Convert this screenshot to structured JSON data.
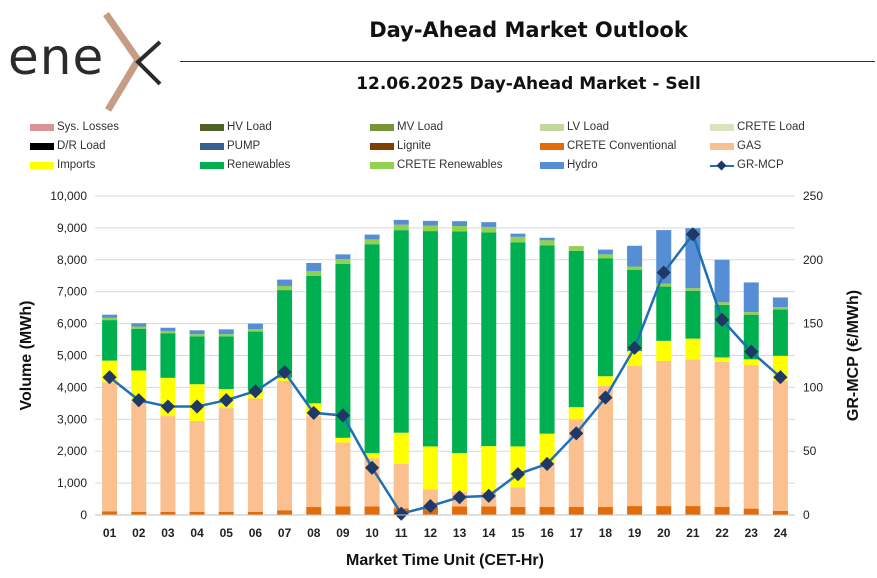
{
  "brand": {
    "logo_text": "ene",
    "logo_color": "#2b2b2b",
    "accent_color": "#c69c85"
  },
  "header": {
    "title": "Day-Ahead Market Outlook",
    "subtitle": "12.06.2025  Day-Ahead Market - Sell"
  },
  "legend": [
    {
      "label": "Sys. Losses",
      "color": "#d99594",
      "kind": "bar"
    },
    {
      "label": "HV Load",
      "color": "#4f6228",
      "kind": "bar"
    },
    {
      "label": "MV Load",
      "color": "#77933c",
      "kind": "bar"
    },
    {
      "label": "LV Load",
      "color": "#c3d69b",
      "kind": "bar"
    },
    {
      "label": "CRETE Load",
      "color": "#d7e4bd",
      "kind": "bar"
    },
    {
      "label": "D/R Load",
      "color": "#000000",
      "kind": "bar"
    },
    {
      "label": "PUMP",
      "color": "#376092",
      "kind": "bar"
    },
    {
      "label": "Lignite",
      "color": "#7f3f00",
      "kind": "bar"
    },
    {
      "label": "CRETE Conventional",
      "color": "#e36c09",
      "kind": "bar"
    },
    {
      "label": "GAS",
      "color": "#fac090",
      "kind": "bar"
    },
    {
      "label": "Imports",
      "color": "#ffff00",
      "kind": "bar"
    },
    {
      "label": "Renewables",
      "color": "#00b050",
      "kind": "bar"
    },
    {
      "label": "CRETE Renewables",
      "color": "#92d050",
      "kind": "bar"
    },
    {
      "label": "Hydro",
      "color": "#558ed5",
      "kind": "bar"
    },
    {
      "label": "GR-MCP",
      "color": "#1f6fb5",
      "marker_color": "#1f3864",
      "kind": "line"
    }
  ],
  "chart_data": {
    "type": "bar",
    "stacked": true,
    "xlabel": "Market Time Unit (CET-Hr)",
    "ylabel": "Volume (MWh)",
    "y2label": "GR-MCP (€/MWh)",
    "ylim": [
      0,
      10000
    ],
    "y2lim": [
      0,
      250
    ],
    "yticks": [
      "0",
      "1,000",
      "2,000",
      "3,000",
      "4,000",
      "5,000",
      "6,000",
      "7,000",
      "8,000",
      "9,000",
      "10,000"
    ],
    "y2ticks": [
      "0",
      "50",
      "100",
      "150",
      "200",
      "250"
    ],
    "categories": [
      "01",
      "02",
      "03",
      "04",
      "05",
      "06",
      "07",
      "08",
      "09",
      "10",
      "11",
      "12",
      "13",
      "14",
      "15",
      "16",
      "17",
      "18",
      "19",
      "20",
      "21",
      "22",
      "23",
      "24"
    ],
    "series": [
      {
        "name": "CRETE Conventional",
        "color": "#e36c09",
        "values": [
          110,
          100,
          100,
          100,
          100,
          100,
          150,
          250,
          270,
          270,
          210,
          250,
          270,
          270,
          250,
          250,
          250,
          250,
          280,
          280,
          280,
          250,
          200,
          130
        ]
      },
      {
        "name": "GAS",
        "color": "#fac090",
        "values": [
          4050,
          3450,
          3000,
          2850,
          3250,
          3550,
          4050,
          2850,
          2000,
          1500,
          1400,
          550,
          450,
          450,
          620,
          1380,
          2750,
          3800,
          4400,
          4550,
          4600,
          4550,
          4500,
          4080
        ]
      },
      {
        "name": "Imports",
        "color": "#ffff00",
        "values": [
          680,
          980,
          1200,
          1150,
          600,
          250,
          100,
          400,
          150,
          170,
          970,
          1350,
          1220,
          1440,
          1280,
          920,
          380,
          300,
          460,
          630,
          650,
          140,
          180,
          780
        ]
      },
      {
        "name": "Renewables",
        "color": "#00b050",
        "values": [
          1270,
          1310,
          1400,
          1500,
          1650,
          1850,
          2750,
          4000,
          5450,
          6550,
          6350,
          6750,
          6950,
          6700,
          6400,
          5900,
          4900,
          3700,
          2550,
          1700,
          1500,
          1650,
          1400,
          1450
        ]
      },
      {
        "name": "CRETE Renewables",
        "color": "#92d050",
        "values": [
          70,
          70,
          70,
          70,
          70,
          80,
          130,
          150,
          150,
          150,
          170,
          170,
          170,
          170,
          170,
          160,
          150,
          120,
          100,
          90,
          80,
          80,
          80,
          80
        ]
      },
      {
        "name": "Hydro",
        "color": "#558ed5",
        "values": [
          100,
          100,
          100,
          120,
          150,
          170,
          200,
          250,
          150,
          150,
          150,
          150,
          150,
          150,
          100,
          80,
          0,
          150,
          650,
          1680,
          1880,
          1330,
          930,
          300
        ]
      }
    ],
    "line": {
      "name": "GR-MCP",
      "axis": "y2",
      "color": "#1f6fb5",
      "marker_color": "#1f3864",
      "values": [
        108,
        90,
        85,
        85,
        90,
        97,
        112,
        80,
        78,
        37,
        1,
        7,
        14,
        15,
        32,
        40,
        64,
        92,
        131,
        190,
        220,
        153,
        128,
        108
      ]
    }
  }
}
